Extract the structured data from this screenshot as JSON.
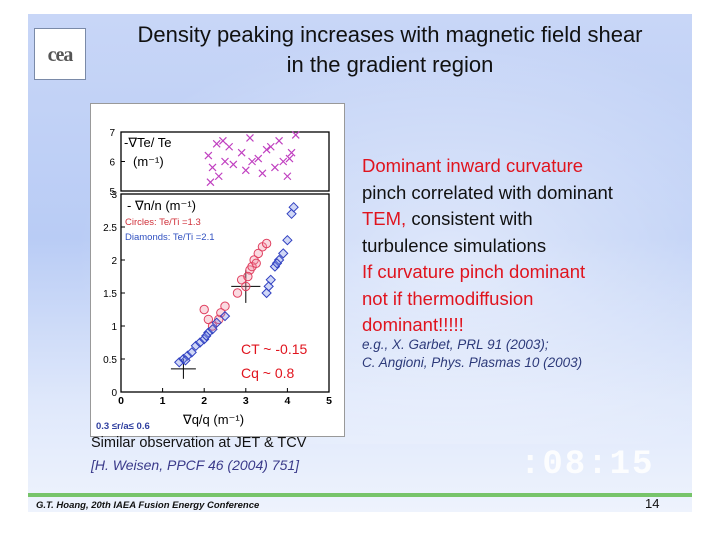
{
  "slide": {
    "logo_text": "cea",
    "title_line1": "Density peaking increases with magnetic field shear",
    "title_line2": "in the gradient region",
    "bullets": [
      {
        "text": "Dominant inward curvature",
        "color": "red"
      },
      {
        "text": "pinch correlated with dominant",
        "color": "black"
      },
      {
        "text": "TEM, consistent with",
        "color": "red_black"
      },
      {
        "text": "turbulence simulations",
        "color": "black"
      },
      {
        "text": "If curvature pinch dominant",
        "color": "red"
      },
      {
        "text": "not if thermodiffusion",
        "color": "red"
      },
      {
        "text": "dominant!!!!!",
        "color": "red"
      }
    ],
    "bullet_tem": "TEM,",
    "bullet_tem_rest": " consistent with",
    "refs": [
      "e.g., X. Garbet, PRL 91 (2003);",
      "C. Angioni, Phys. Plasmas 10 (2003)"
    ],
    "similar": "Similar observation at JET & TCV",
    "similar_ref": "[H. Weisen, PPCF 46 (2004) 751]",
    "clock": ":08:15",
    "footer": "G.T. Hoang, 20th IAEA Fusion Energy Conference",
    "page_number": "14"
  },
  "figure": {
    "top_panel_label": "-∇Te/ Te",
    "top_panel_unit": "(m⁻¹)",
    "top_yticks": [
      "7",
      "6",
      "5"
    ],
    "bottom_panel_label": "- ∇n/n (m⁻¹)",
    "legend_circles": "Circles: Te/Ti =1.3",
    "legend_diamonds": "Diamonds: Te/Ti =2.1",
    "bottom_yticks": [
      "3",
      "2.5",
      "2",
      "1.5",
      "1",
      "0.5",
      "0"
    ],
    "xticks": [
      "0",
      "1",
      "2",
      "3",
      "4",
      "5"
    ],
    "ct_label": "CT ~ -0.15",
    "cq_label": "Cq ~ 0.8",
    "xlabel": "∇q/q (m⁻¹)",
    "range_label": "0.3 ≤r/a≤ 0.6",
    "colors": {
      "circles": "#e04060",
      "diamonds": "#3040c0",
      "crosses": "#c040c0"
    }
  },
  "chart_data": {
    "type": "scatter",
    "xlabel": "∇q/q (m⁻¹)",
    "ylabel": "- ∇n/n (m⁻¹)",
    "xlim": [
      0,
      5
    ],
    "ylim": [
      0,
      3
    ],
    "top_ylim": [
      5,
      7
    ],
    "series": [
      {
        "name": "Circles: Te/Ti =1.3",
        "panel": "bottom",
        "x": [
          2.0,
          2.2,
          2.35,
          2.5,
          2.8,
          2.9,
          3.0,
          3.1,
          3.15,
          3.2,
          3.3,
          3.4,
          3.5,
          2.1,
          2.4,
          3.05,
          3.25
        ],
        "y": [
          1.25,
          1.0,
          1.1,
          1.3,
          1.5,
          1.7,
          1.6,
          1.85,
          1.9,
          2.0,
          2.1,
          2.2,
          2.25,
          1.1,
          1.2,
          1.75,
          1.95
        ]
      },
      {
        "name": "Diamonds: Te/Ti =2.1",
        "panel": "bottom",
        "x": [
          1.4,
          1.5,
          1.6,
          1.7,
          1.8,
          1.9,
          2.0,
          2.1,
          2.2,
          2.3,
          2.5,
          3.5,
          3.6,
          3.7,
          3.8,
          3.9,
          4.0,
          4.1,
          4.15,
          1.55,
          2.05,
          3.55,
          3.75
        ],
        "y": [
          0.45,
          0.5,
          0.55,
          0.6,
          0.7,
          0.75,
          0.8,
          0.9,
          0.95,
          1.05,
          1.15,
          1.5,
          1.7,
          1.9,
          2.0,
          2.1,
          2.3,
          2.7,
          2.8,
          0.48,
          0.85,
          1.6,
          1.95
        ]
      },
      {
        "name": "-∇Te/ Te",
        "panel": "top",
        "x": [
          2.1,
          2.2,
          2.3,
          2.35,
          2.5,
          2.6,
          2.7,
          2.9,
          3.0,
          3.1,
          3.3,
          3.4,
          3.5,
          3.7,
          3.8,
          3.9,
          4.0,
          4.1,
          4.2,
          2.15,
          2.45,
          3.15,
          3.6,
          4.05
        ],
        "y": [
          6.2,
          5.8,
          6.6,
          5.5,
          6.0,
          6.5,
          5.9,
          6.3,
          5.7,
          6.8,
          6.1,
          5.6,
          6.4,
          5.8,
          6.7,
          6.0,
          5.5,
          6.3,
          6.9,
          5.3,
          6.7,
          6.0,
          6.5,
          6.1
        ]
      }
    ]
  }
}
